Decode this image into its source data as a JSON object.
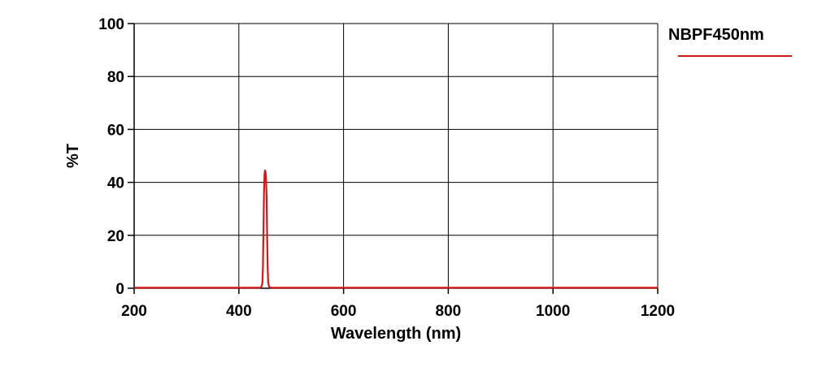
{
  "chart_data": {
    "type": "line",
    "title": "",
    "xlabel": "Wavelength (nm)",
    "ylabel": "%T",
    "xlim": [
      200,
      1200
    ],
    "ylim": [
      0,
      100
    ],
    "x_ticks": [
      200,
      400,
      600,
      800,
      1000,
      1200
    ],
    "y_ticks": [
      0,
      20,
      40,
      60,
      80,
      100
    ],
    "grid": true,
    "legend_position": "top-right",
    "series": [
      {
        "name": "NBPF450nm",
        "color": "#d11919",
        "points": [
          [
            200,
            0.2
          ],
          [
            440,
            0.2
          ],
          [
            443,
            0.5
          ],
          [
            445,
            2.0
          ],
          [
            446,
            8.0
          ],
          [
            447,
            22.0
          ],
          [
            448,
            36.0
          ],
          [
            449,
            43.0
          ],
          [
            450,
            44.5
          ],
          [
            451,
            44.0
          ],
          [
            452,
            41.0
          ],
          [
            453,
            34.0
          ],
          [
            454,
            20.0
          ],
          [
            455,
            8.0
          ],
          [
            456,
            2.0
          ],
          [
            458,
            0.5
          ],
          [
            461,
            0.2
          ],
          [
            1200,
            0.2
          ]
        ]
      }
    ]
  }
}
